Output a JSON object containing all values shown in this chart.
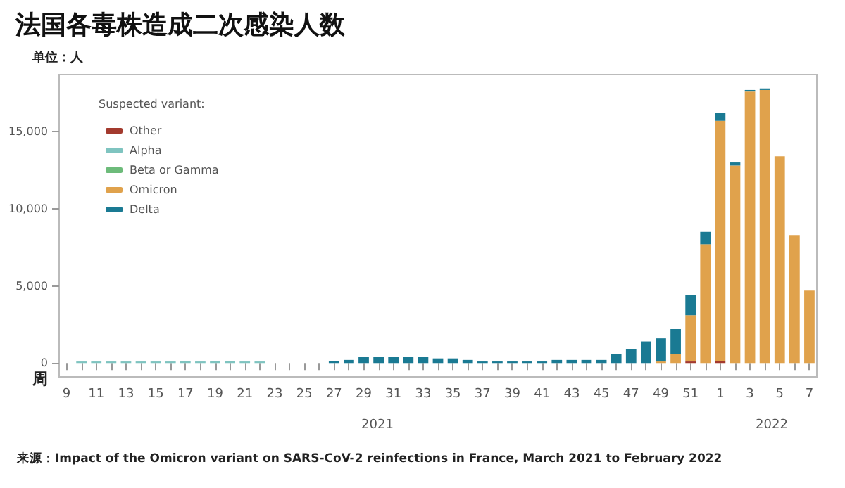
{
  "chart_data": {
    "type": "bar",
    "title": "法国各毒株造成二次感染人数",
    "subtitle": "单位：人",
    "xlabel": "周",
    "categories": [
      "9",
      null,
      "11",
      null,
      "13",
      null,
      "15",
      null,
      "17",
      null,
      "19",
      null,
      "21",
      null,
      "23",
      null,
      "25",
      null,
      "27",
      null,
      "29",
      null,
      "31",
      null,
      "33",
      null,
      "35",
      null,
      "37",
      null,
      "39",
      null,
      "41",
      null,
      "43",
      null,
      "45",
      null,
      "47",
      null,
      "49",
      null,
      "51",
      null,
      "1",
      null,
      "3",
      null,
      "5",
      null,
      "7"
    ],
    "stacked": true,
    "legend_title": "Suspected variant:",
    "legend": "top left",
    "grid": false,
    "ylim": [
      -900,
      18700
    ],
    "yticks": [
      {
        "value": 0,
        "label": "0"
      },
      {
        "value": 5000,
        "label": "5,000"
      },
      {
        "value": 10000,
        "label": "10,000"
      },
      {
        "value": 15000,
        "label": "15,000"
      }
    ],
    "series": [
      {
        "name": "Other",
        "color": "#a33a2e",
        "values": [
          0,
          0,
          0,
          0,
          0,
          0,
          0,
          0,
          0,
          0,
          0,
          0,
          0,
          0,
          0,
          0,
          0,
          0,
          0,
          0,
          0,
          0,
          0,
          0,
          0,
          0,
          0,
          0,
          0,
          0,
          0,
          0,
          0,
          0,
          0,
          0,
          0,
          0,
          0,
          0,
          0,
          0,
          100,
          0,
          100,
          0,
          0,
          0,
          0,
          0,
          0
        ]
      },
      {
        "name": "Alpha",
        "color": "#7fc4c0",
        "values": [
          0,
          100,
          100,
          100,
          100,
          100,
          100,
          100,
          100,
          100,
          100,
          100,
          100,
          100,
          0,
          0,
          0,
          0,
          0,
          0,
          0,
          0,
          0,
          0,
          0,
          0,
          0,
          0,
          0,
          0,
          0,
          0,
          0,
          0,
          0,
          0,
          0,
          0,
          0,
          0,
          0,
          0,
          0,
          0,
          0,
          0,
          0,
          0,
          0,
          0,
          0
        ]
      },
      {
        "name": "Beta or Gamma",
        "color": "#6dbb7a",
        "values": [
          0,
          0,
          0,
          0,
          0,
          0,
          0,
          0,
          0,
          0,
          0,
          0,
          0,
          0,
          0,
          0,
          0,
          0,
          0,
          0,
          0,
          0,
          0,
          0,
          0,
          0,
          0,
          0,
          0,
          0,
          0,
          0,
          0,
          0,
          0,
          0,
          0,
          0,
          0,
          0,
          0,
          0,
          0,
          0,
          0,
          0,
          0,
          0,
          0,
          0,
          0
        ]
      },
      {
        "name": "Omicron",
        "color": "#e0a24c",
        "values": [
          0,
          0,
          0,
          0,
          0,
          0,
          0,
          0,
          0,
          0,
          0,
          0,
          0,
          0,
          0,
          0,
          0,
          0,
          0,
          0,
          0,
          0,
          0,
          0,
          0,
          0,
          0,
          0,
          0,
          0,
          0,
          0,
          0,
          0,
          0,
          0,
          0,
          0,
          0,
          0,
          100,
          600,
          3000,
          7700,
          15600,
          12800,
          17600,
          17700,
          13400,
          8300,
          4700
        ]
      },
      {
        "name": "Delta",
        "color": "#1a7a93",
        "values": [
          0,
          0,
          0,
          0,
          0,
          0,
          0,
          0,
          0,
          0,
          0,
          0,
          0,
          0,
          0,
          0,
          0,
          0,
          100,
          200,
          400,
          400,
          400,
          400,
          400,
          300,
          300,
          200,
          100,
          100,
          100,
          100,
          100,
          200,
          200,
          200,
          200,
          600,
          900,
          1400,
          1500,
          1600,
          1300,
          800,
          500,
          200,
          100,
          100,
          0,
          0,
          0
        ]
      }
    ],
    "annotations": [
      "2021",
      "2022",
      "来源：Impact of the Omicron variant on SARS-CoV-2 reinfections in France, March 2021 to February 2022"
    ]
  }
}
